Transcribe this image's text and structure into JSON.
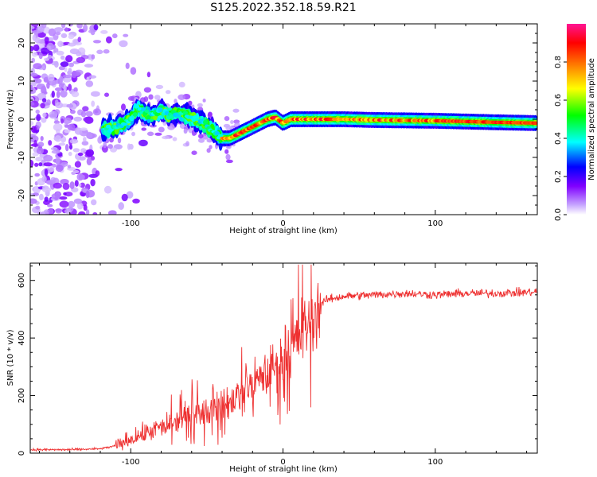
{
  "title": "S125.2022.352.18.59.R21",
  "chart_data": [
    {
      "type": "heatmap",
      "xlabel": "Height of straight line (km)",
      "ylabel": "Frequency (Hz)",
      "xlim": [
        -166,
        167
      ],
      "ylim": [
        -25,
        25
      ],
      "x_ticks": [
        -100,
        0,
        100
      ],
      "y_ticks": [
        -20,
        -10,
        0,
        10,
        20
      ],
      "colorbar": {
        "label": "Normalized spectral amplitude",
        "range": [
          0,
          1
        ],
        "ticks": [
          0.0,
          0.2,
          0.4,
          0.6,
          0.8
        ],
        "colors": [
          "#ffffff",
          "#c8a8ff",
          "#8000ff",
          "#0000ff",
          "#00ffff",
          "#00ff00",
          "#ffff00",
          "#ff8000",
          "#ff0000",
          "#ff1493"
        ]
      },
      "ridge": {
        "name": "Doppler frequency trace",
        "x": [
          -120,
          -110,
          -100,
          -95,
          -90,
          -85,
          -80,
          -75,
          -70,
          -65,
          -60,
          -55,
          -50,
          -45,
          -40,
          -35,
          -30,
          -25,
          -20,
          -15,
          -10,
          -5,
          0,
          5,
          10,
          20,
          40,
          60,
          80,
          100,
          120,
          140,
          165
        ],
        "y": [
          -3,
          -2,
          0,
          3,
          1.5,
          1,
          2.5,
          0.5,
          1.5,
          1.5,
          0.5,
          -0.5,
          -1.5,
          -3.5,
          -5,
          -5,
          -4,
          -3,
          -2,
          -1,
          0,
          0.5,
          -1,
          0,
          0,
          0,
          0,
          -0.2,
          -0.3,
          -0.4,
          -0.6,
          -0.8,
          -1
        ]
      }
    },
    {
      "type": "line",
      "xlabel": "Height of straight line (km)",
      "ylabel": "SNR (10 * v/v)",
      "xlim": [
        -166,
        167
      ],
      "ylim": [
        0,
        660
      ],
      "x_ticks": [
        -100,
        0,
        100
      ],
      "y_ticks": [
        0,
        200,
        400,
        600
      ],
      "series": [
        {
          "color": "#ee3030",
          "x": [
            -166,
            -140,
            -120,
            -110,
            -100,
            -90,
            -80,
            -70,
            -60,
            -50,
            -40,
            -30,
            -20,
            -10,
            0,
            5,
            10,
            15,
            20,
            25,
            30,
            40,
            60,
            80,
            100,
            120,
            140,
            167
          ],
          "y": [
            12,
            12,
            15,
            25,
            50,
            70,
            90,
            110,
            140,
            150,
            160,
            200,
            240,
            280,
            330,
            370,
            400,
            440,
            480,
            520,
            535,
            545,
            550,
            555,
            550,
            555,
            555,
            560
          ]
        }
      ]
    }
  ]
}
